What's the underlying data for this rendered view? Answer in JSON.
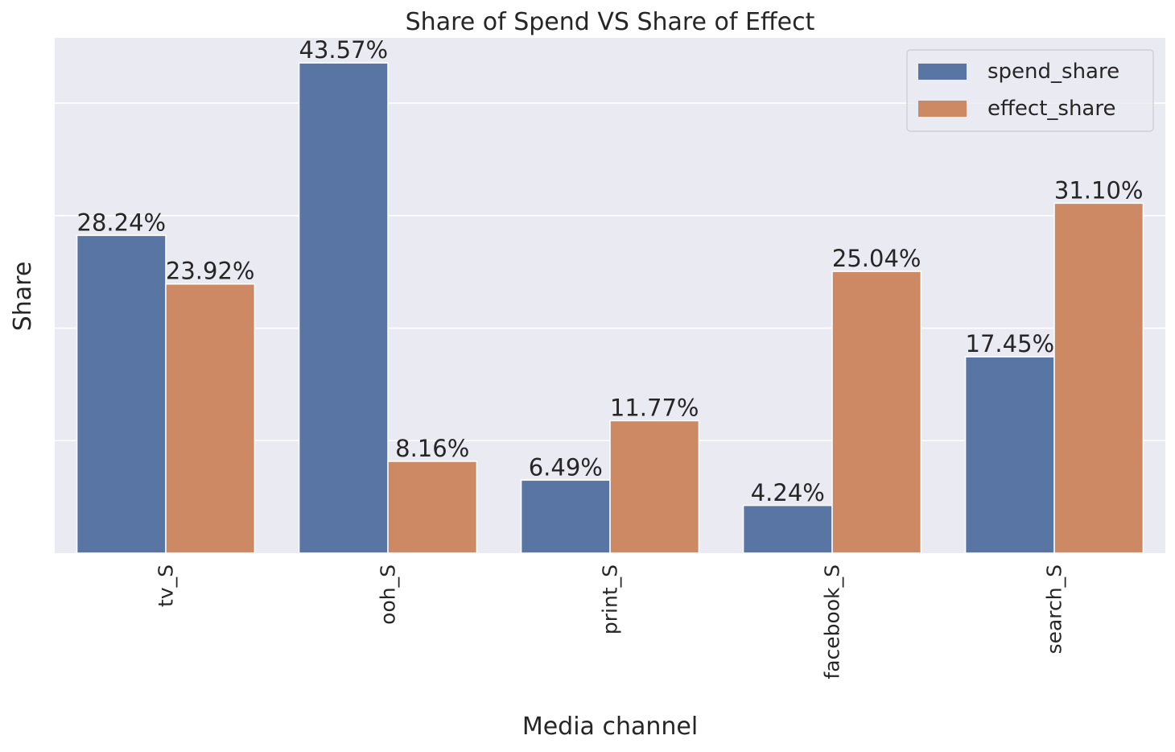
{
  "chart_data": {
    "type": "bar",
    "title": "Share of Spend VS Share of Effect",
    "xlabel": "Media channel",
    "ylabel": "Share",
    "categories": [
      "tv_S",
      "ooh_S",
      "print_S",
      "facebook_S",
      "search_S"
    ],
    "series": [
      {
        "name": "spend_share",
        "values": [
          0.2824,
          0.4357,
          0.0649,
          0.0424,
          0.1745
        ],
        "labels": [
          "28.24%",
          "43.57%",
          "6.49%",
          "4.24%",
          "17.45%"
        ],
        "color": "#5975a4"
      },
      {
        "name": "effect_share",
        "values": [
          0.2392,
          0.0816,
          0.1177,
          0.2504,
          0.311
        ],
        "labels": [
          "23.92%",
          "8.16%",
          "11.77%",
          "25.04%",
          "31.10%"
        ],
        "color": "#cc8963"
      }
    ],
    "ylim": [
      0,
      0.458
    ],
    "gridlines": [
      0.1,
      0.2,
      0.3,
      0.4
    ],
    "y_tick_labels_shown": false,
    "grid": true,
    "legend_position": "top-right",
    "background_color": "#eaeaf2",
    "grid_color": "#ffffff"
  }
}
